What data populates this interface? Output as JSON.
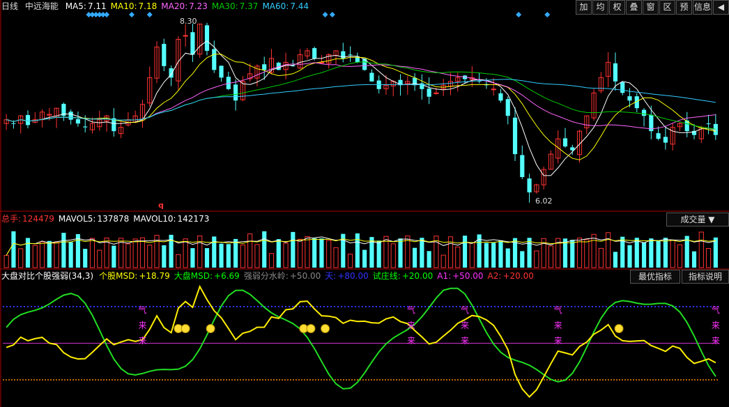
{
  "header": {
    "period": "日线",
    "stock_name": "中远海能",
    "ma": [
      {
        "label": "MA5:",
        "value": "7.11",
        "color": "#ffffff"
      },
      {
        "label": "MA10:",
        "value": "7.18",
        "color": "#ffff00"
      },
      {
        "label": "MA20:",
        "value": "7.23",
        "color": "#ff66ff"
      },
      {
        "label": "MA30:",
        "value": "7.37",
        "color": "#00cc00"
      },
      {
        "label": "MA60:",
        "value": "7.44",
        "color": "#33ccff"
      }
    ]
  },
  "toolbar": [
    "加",
    "均",
    "权",
    "叠",
    "窗",
    "区",
    "预",
    "信息",
    "◀"
  ],
  "price_annotations": {
    "high": "8.30",
    "low": "6.02",
    "marker": "q"
  },
  "volume": {
    "items": [
      {
        "label": "总手:",
        "value": "124479",
        "color": "#ff3333"
      },
      {
        "label": "MAVOL5:",
        "value": "137878",
        "color": "#ffffff"
      },
      {
        "label": "MAVOL10:",
        "value": "142173",
        "color": "#ffffff"
      }
    ],
    "selector": "成交量"
  },
  "indicator": {
    "items": [
      {
        "label": "大盘对比个股强弱(34,3)",
        "value": "",
        "color": "#ffffff"
      },
      {
        "label": "个股MSD:",
        "value": "+18.79",
        "color": "#ffff00"
      },
      {
        "label": "大盘MSD:",
        "value": "+6.69",
        "color": "#00ff00"
      },
      {
        "label": "强弱分水岭:",
        "value": "+50.00",
        "color": "#888888"
      },
      {
        "label": "天:",
        "value": "+80.00",
        "color": "#3333ff"
      },
      {
        "label": "试庄线:",
        "value": "+20.00",
        "color": "#00ff00"
      },
      {
        "label": "A1:",
        "value": "+50.00",
        "color": "#ff33ff"
      },
      {
        "label": "A2:",
        "value": "+20.00",
        "color": "#ff3333"
      }
    ],
    "buttons": [
      "最优指标",
      "指标说明"
    ],
    "signal_labels": [
      "气",
      "来",
      "来"
    ]
  },
  "chart_data": {
    "type": "candlestick",
    "price_range": [
      5.9,
      8.45
    ],
    "price_high": 8.3,
    "price_low": 6.02,
    "ohlc_close": [
      7.05,
      7.0,
      7.1,
      6.98,
      7.05,
      7.15,
      7.12,
      7.2,
      7.1,
      7.05,
      7.0,
      6.95,
      7.0,
      7.05,
      7.1,
      6.9,
      6.95,
      7.05,
      7.1,
      7.25,
      7.6,
      8.0,
      7.75,
      7.6,
      8.1,
      8.15,
      7.9,
      8.3,
      7.95,
      7.7,
      7.6,
      7.45,
      7.3,
      7.55,
      7.65,
      7.75,
      7.7,
      7.85,
      7.7,
      7.8,
      7.75,
      7.9,
      7.95,
      7.85,
      7.8,
      7.9,
      7.95,
      7.85,
      7.9,
      7.8,
      7.7,
      7.55,
      7.45,
      7.5,
      7.55,
      7.5,
      7.55,
      7.5,
      7.45,
      7.35,
      7.4,
      7.5,
      7.55,
      7.6,
      7.58,
      7.6,
      7.55,
      7.5,
      7.45,
      7.3,
      7.1,
      6.6,
      6.3,
      6.1,
      6.2,
      6.4,
      6.6,
      6.8,
      6.7,
      6.65,
      6.9,
      7.1,
      7.4,
      7.6,
      7.8,
      7.55,
      7.4,
      7.3,
      7.2,
      7.1,
      6.9,
      6.8,
      6.75,
      6.95,
      7.0,
      6.9,
      6.85,
      6.95,
      7.0,
      6.85
    ],
    "volume_range": [
      0,
      300000
    ],
    "volume_last": 124479,
    "mavol5_last": 137878,
    "mavol10_last": 142173,
    "indicator_range": [
      0,
      100
    ],
    "stock_msd_last": 18.79,
    "market_msd_last": 6.69,
    "reference_lines": {
      "天": 80,
      "强弱分水岭": 50,
      "试庄线": 20
    }
  }
}
